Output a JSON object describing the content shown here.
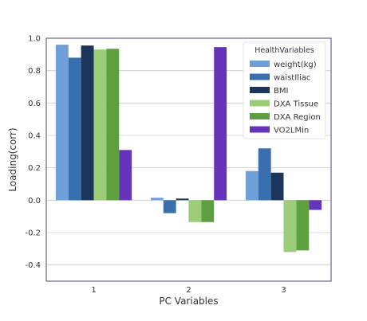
{
  "chart_data": {
    "type": "bar",
    "categories": [
      "1",
      "2",
      "3"
    ],
    "xlabel": "PC Variables",
    "ylabel": "Loading(corr)",
    "ylim": [
      -0.5,
      1.0
    ],
    "yticks": [
      -0.4,
      -0.2,
      0.0,
      0.2,
      0.4,
      0.6,
      0.8,
      1.0
    ],
    "ytick_labels": [
      "-0.4",
      "-0.2",
      "0.0",
      "0.2",
      "0.4",
      "0.6",
      "0.8",
      "1.0"
    ],
    "grid": "horizontal",
    "legend": {
      "title": "HealthVariables",
      "placement": "top-right"
    },
    "series": [
      {
        "name": "weight(kg)",
        "color": "#6f9fd8",
        "values": [
          0.96,
          0.015,
          0.18
        ]
      },
      {
        "name": "waistIliac",
        "color": "#3a6faf",
        "values": [
          0.88,
          -0.08,
          0.32
        ]
      },
      {
        "name": "BMI",
        "color": "#1c355b",
        "values": [
          0.955,
          0.01,
          0.17
        ]
      },
      {
        "name": "DXA Tissue",
        "color": "#9bcc77",
        "values": [
          0.93,
          -0.135,
          -0.32
        ]
      },
      {
        "name": "DXA Region",
        "color": "#5ea03f",
        "values": [
          0.935,
          -0.135,
          -0.31
        ]
      },
      {
        "name": "VO2LMin",
        "color": "#6633bb",
        "values": [
          0.31,
          0.945,
          -0.06
        ]
      }
    ]
  }
}
